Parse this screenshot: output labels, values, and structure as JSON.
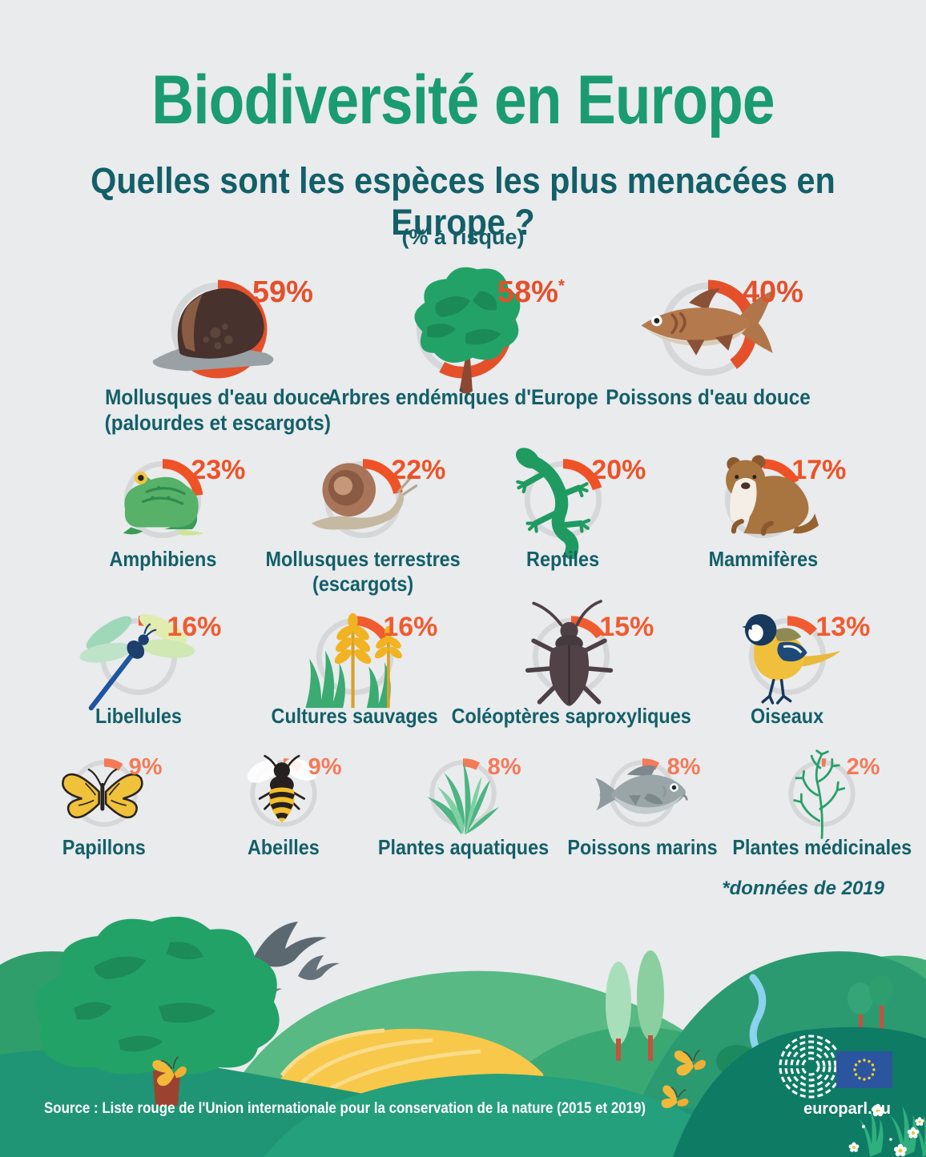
{
  "page": {
    "title": "Biodiversité en Europe",
    "subtitle": "Quelles sont les espèces les plus menacées en Europe ?",
    "unit_note": "(% à risque)",
    "footnote": "*données de 2019"
  },
  "footer": {
    "source": "Source : Liste rouge de l'Union internationale pour la conservation de la nature (2015 et 2019)",
    "website": "europarl.eu"
  },
  "colors": {
    "background": "#e9ebed",
    "title_green": "#1a9c70",
    "text_teal": "#135f68",
    "arc_track": "#d6d7d9",
    "row_accents": [
      "#e4502a",
      "#ee5226",
      "#f15b30",
      "#f47a58"
    ],
    "footer_band": "#1f9576",
    "eu_flag_blue": "#2c55a0",
    "eu_star_yellow": "#f2d22e"
  },
  "rows": [
    {
      "ring": 126,
      "items": [
        {
          "label": "Mollusques d'eau douce",
          "sublabel": "(palourdes et escargots)",
          "value": 59,
          "display": "59%",
          "icon": "freshwater-snail-icon"
        },
        {
          "label": "Arbres endémiques d'Europe",
          "value": 58,
          "display": "58%",
          "asterisk": "*",
          "icon": "tree-icon"
        },
        {
          "label": "Poissons d'eau douce",
          "value": 40,
          "display": "40%",
          "icon": "freshwater-fish-icon"
        }
      ]
    },
    {
      "ring": 104,
      "items": [
        {
          "label": "Amphibiens",
          "value": 23,
          "display": "23%",
          "icon": "frog-icon"
        },
        {
          "label": "Mollusques terrestres",
          "sublabel": "(escargots)",
          "value": 22,
          "display": "22%",
          "icon": "land-snail-icon"
        },
        {
          "label": "Reptiles",
          "value": 20,
          "display": "20%",
          "icon": "lizard-icon"
        },
        {
          "label": "Mammifères",
          "value": 17,
          "display": "17%",
          "icon": "otter-icon"
        }
      ]
    },
    {
      "ring": 104,
      "items": [
        {
          "label": "Libellules",
          "value": 16,
          "display": "16%",
          "icon": "dragonfly-icon"
        },
        {
          "label": "Cultures sauvages",
          "value": 16,
          "display": "16%",
          "icon": "wheat-icon"
        },
        {
          "label": "Coléoptères saproxyliques",
          "value": 15,
          "display": "15%",
          "icon": "beetle-icon"
        },
        {
          "label": "Oiseaux",
          "value": 13,
          "display": "13%",
          "icon": "bird-icon"
        }
      ]
    },
    {
      "ring": 90,
      "items": [
        {
          "label": "Papillons",
          "value": 9,
          "display": "9%",
          "icon": "butterfly-icon"
        },
        {
          "label": "Abeilles",
          "value": 9,
          "display": "9%",
          "icon": "bee-icon"
        },
        {
          "label": "Plantes aquatiques",
          "value": 8,
          "display": "8%",
          "icon": "aquatic-plant-icon"
        },
        {
          "label": "Poissons marins",
          "value": 8,
          "display": "8%",
          "icon": "marine-fish-icon"
        },
        {
          "label": "Plantes médicinales",
          "value": 2,
          "display": "2%",
          "icon": "medicinal-plant-icon"
        }
      ]
    }
  ],
  "chart_data": {
    "type": "bar",
    "title": "Biodiversité en Europe",
    "subtitle": "Quelles sont les espèces les plus menacées en Europe ?",
    "unit": "% à risque",
    "categories": [
      "Mollusques d'eau douce (palourdes et escargots)",
      "Arbres endémiques d'Europe",
      "Poissons d'eau douce",
      "Amphibiens",
      "Mollusques terrestres (escargots)",
      "Reptiles",
      "Mammifères",
      "Libellules",
      "Cultures sauvages",
      "Coléoptères saproxyliques",
      "Oiseaux",
      "Papillons",
      "Abeilles",
      "Plantes aquatiques",
      "Poissons marins",
      "Plantes médicinales"
    ],
    "values": [
      59,
      58,
      40,
      23,
      22,
      20,
      17,
      16,
      16,
      15,
      13,
      9,
      9,
      8,
      8,
      2
    ],
    "ylim": [
      0,
      100
    ],
    "annotations": [
      "Arbres endémiques d'Europe : *données de 2019"
    ],
    "source": "Liste rouge de l'Union internationale pour la conservation de la nature (2015 et 2019)"
  }
}
